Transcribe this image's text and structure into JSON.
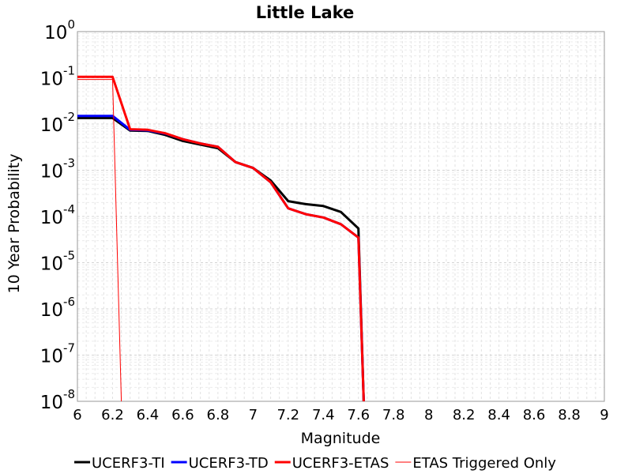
{
  "chart_data": {
    "type": "line",
    "title": "Little Lake",
    "xlabel": "Magnitude",
    "ylabel": "10 Year Probability",
    "xlim": [
      6,
      9
    ],
    "ylim_log10": [
      -8,
      0
    ],
    "y_scale": "log",
    "grid": true,
    "legend_position": "bottom",
    "x_ticks": [
      "6",
      "6.2",
      "6.4",
      "6.6",
      "6.8",
      "7",
      "7.2",
      "7.4",
      "7.6",
      "7.8",
      "8",
      "8.2",
      "8.4",
      "8.6",
      "8.8",
      "9"
    ],
    "y_ticks": [
      {
        "base": "10",
        "exp": "0"
      },
      {
        "base": "10",
        "exp": "-1"
      },
      {
        "base": "10",
        "exp": "-2"
      },
      {
        "base": "10",
        "exp": "-3"
      },
      {
        "base": "10",
        "exp": "-4"
      },
      {
        "base": "10",
        "exp": "-5"
      },
      {
        "base": "10",
        "exp": "-6"
      },
      {
        "base": "10",
        "exp": "-7"
      },
      {
        "base": "10",
        "exp": "-8"
      }
    ],
    "series": [
      {
        "name": "UCERF3-TI",
        "color": "#000000",
        "x": [
          6.0,
          6.2,
          6.3,
          6.4,
          6.5,
          6.6,
          6.7,
          6.8,
          6.9,
          7.0,
          7.1,
          7.2,
          7.3,
          7.4,
          7.5,
          7.6,
          7.63
        ],
        "y": [
          0.0135,
          0.0135,
          0.0072,
          0.0071,
          0.0058,
          0.0043,
          0.0036,
          0.003,
          0.0015,
          0.00112,
          0.0006,
          0.000215,
          0.000185,
          0.000168,
          0.000125,
          5.5e-05,
          1e-08
        ]
      },
      {
        "name": "UCERF3-TD",
        "color": "#0000ff",
        "x": [
          6.0,
          6.2,
          6.3,
          6.4,
          6.5,
          6.6,
          6.7,
          6.8,
          6.9,
          7.0,
          7.1,
          7.2,
          7.3,
          7.4,
          7.5,
          7.6,
          7.63
        ],
        "y": [
          0.015,
          0.015,
          0.0075,
          0.0073,
          0.0062,
          0.0047,
          0.0038,
          0.0032,
          0.0015,
          0.00112,
          0.00055,
          0.00015,
          0.000112,
          9.5e-05,
          6.8e-05,
          3.5e-05,
          1e-08
        ]
      },
      {
        "name": "UCERF3-ETAS",
        "color": "#ff0000",
        "x": [
          6.0,
          6.2,
          6.3,
          6.4,
          6.5,
          6.6,
          6.7,
          6.8,
          6.9,
          7.0,
          7.1,
          7.2,
          7.3,
          7.4,
          7.5,
          7.6,
          7.63
        ],
        "y": [
          0.105,
          0.105,
          0.0077,
          0.0075,
          0.0063,
          0.0047,
          0.0038,
          0.0032,
          0.0015,
          0.00112,
          0.00055,
          0.00015,
          0.000112,
          9.5e-05,
          6.8e-05,
          3.5e-05,
          1e-08
        ]
      },
      {
        "name": "ETAS Triggered Only",
        "color": "#ff0000",
        "thin": true,
        "x": [
          6.0,
          6.2,
          6.25
        ],
        "y": [
          0.092,
          0.092,
          1e-08
        ]
      }
    ]
  }
}
